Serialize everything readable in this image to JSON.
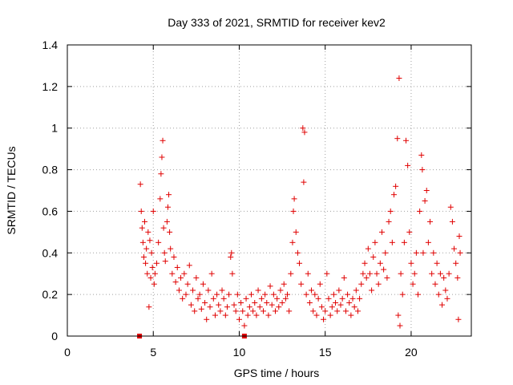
{
  "chart_data": {
    "type": "scatter",
    "title": "Day 333 of 2021, SRMTID for receiver kev2",
    "xlabel": "GPS time / hours",
    "ylabel": "SRMTID / TECUs",
    "xlim": [
      0,
      23.5
    ],
    "ylim": [
      0,
      1.4
    ],
    "xticks": [
      0,
      5,
      10,
      15,
      20
    ],
    "xtick_labels": [
      "0",
      "5",
      "10",
      "15",
      "20"
    ],
    "yticks": [
      0,
      0.2,
      0.4,
      0.6,
      0.8,
      1.0,
      1.2,
      1.4
    ],
    "ytick_labels": [
      "0",
      "0.2",
      "0.4",
      "0.6",
      "0.8",
      "1",
      "1.2",
      "1.4"
    ],
    "grid": true,
    "marker": "plus",
    "color": "#e00000",
    "series": [
      {
        "name": "kev2",
        "points": [
          [
            4.25,
            0.73
          ],
          [
            4.3,
            0.6
          ],
          [
            4.35,
            0.52
          ],
          [
            4.4,
            0.45
          ],
          [
            4.45,
            0.38
          ],
          [
            4.5,
            0.55
          ],
          [
            4.55,
            0.35
          ],
          [
            4.6,
            0.42
          ],
          [
            4.65,
            0.3
          ],
          [
            4.7,
            0.5
          ],
          [
            4.75,
            0.14
          ],
          [
            4.8,
            0.46
          ],
          [
            4.85,
            0.28
          ],
          [
            4.9,
            0.4
          ],
          [
            4.95,
            0.33
          ],
          [
            5.0,
            0.6
          ],
          [
            5.05,
            0.25
          ],
          [
            5.1,
            0.3
          ],
          [
            5.2,
            0.35
          ],
          [
            5.3,
            0.45
          ],
          [
            5.4,
            0.66
          ],
          [
            5.45,
            0.78
          ],
          [
            5.5,
            0.86
          ],
          [
            5.55,
            0.94
          ],
          [
            5.6,
            0.52
          ],
          [
            5.65,
            0.4
          ],
          [
            5.7,
            0.36
          ],
          [
            5.8,
            0.55
          ],
          [
            5.85,
            0.62
          ],
          [
            5.9,
            0.68
          ],
          [
            5.95,
            0.5
          ],
          [
            6.0,
            0.42
          ],
          [
            6.1,
            0.3
          ],
          [
            6.2,
            0.38
          ],
          [
            6.3,
            0.26
          ],
          [
            6.4,
            0.33
          ],
          [
            6.5,
            0.22
          ],
          [
            6.6,
            0.28
          ],
          [
            6.7,
            0.18
          ],
          [
            6.8,
            0.3
          ],
          [
            6.9,
            0.2
          ],
          [
            7.0,
            0.25
          ],
          [
            7.1,
            0.34
          ],
          [
            7.2,
            0.15
          ],
          [
            7.3,
            0.22
          ],
          [
            7.4,
            0.12
          ],
          [
            7.5,
            0.28
          ],
          [
            7.6,
            0.18
          ],
          [
            7.7,
            0.2
          ],
          [
            7.8,
            0.13
          ],
          [
            7.9,
            0.25
          ],
          [
            8.0,
            0.16
          ],
          [
            8.1,
            0.08
          ],
          [
            8.2,
            0.22
          ],
          [
            8.3,
            0.14
          ],
          [
            8.4,
            0.3
          ],
          [
            8.5,
            0.18
          ],
          [
            8.6,
            0.1
          ],
          [
            8.7,
            0.2
          ],
          [
            8.8,
            0.15
          ],
          [
            8.9,
            0.12
          ],
          [
            9.0,
            0.22
          ],
          [
            9.1,
            0.18
          ],
          [
            9.2,
            0.1
          ],
          [
            9.3,
            0.14
          ],
          [
            9.4,
            0.2
          ],
          [
            9.5,
            0.38
          ],
          [
            9.55,
            0.4
          ],
          [
            9.6,
            0.3
          ],
          [
            9.7,
            0.15
          ],
          [
            9.8,
            0.12
          ],
          [
            9.9,
            0.2
          ],
          [
            10.0,
            0.08
          ],
          [
            10.1,
            0.16
          ],
          [
            10.2,
            0.12
          ],
          [
            10.3,
            0.05
          ],
          [
            10.4,
            0.18
          ],
          [
            10.5,
            0.1
          ],
          [
            10.6,
            0.14
          ],
          [
            10.7,
            0.2
          ],
          [
            10.8,
            0.12
          ],
          [
            10.9,
            0.16
          ],
          [
            11.0,
            0.1
          ],
          [
            11.1,
            0.22
          ],
          [
            11.2,
            0.14
          ],
          [
            11.3,
            0.18
          ],
          [
            11.4,
            0.12
          ],
          [
            11.5,
            0.2
          ],
          [
            11.6,
            0.16
          ],
          [
            11.7,
            0.1
          ],
          [
            11.8,
            0.24
          ],
          [
            11.9,
            0.15
          ],
          [
            12.0,
            0.2
          ],
          [
            12.1,
            0.12
          ],
          [
            12.2,
            0.18
          ],
          [
            12.3,
            0.14
          ],
          [
            12.4,
            0.22
          ],
          [
            12.5,
            0.16
          ],
          [
            12.6,
            0.25
          ],
          [
            12.7,
            0.18
          ],
          [
            12.8,
            0.2
          ],
          [
            12.9,
            0.12
          ],
          [
            13.0,
            0.3
          ],
          [
            13.1,
            0.45
          ],
          [
            13.15,
            0.6
          ],
          [
            13.2,
            0.66
          ],
          [
            13.3,
            0.5
          ],
          [
            13.4,
            0.4
          ],
          [
            13.5,
            0.35
          ],
          [
            13.6,
            0.25
          ],
          [
            13.7,
            1.0
          ],
          [
            13.75,
            0.74
          ],
          [
            13.8,
            0.98
          ],
          [
            13.9,
            0.2
          ],
          [
            14.0,
            0.3
          ],
          [
            14.1,
            0.16
          ],
          [
            14.2,
            0.22
          ],
          [
            14.3,
            0.12
          ],
          [
            14.4,
            0.2
          ],
          [
            14.5,
            0.1
          ],
          [
            14.6,
            0.18
          ],
          [
            14.7,
            0.25
          ],
          [
            14.8,
            0.14
          ],
          [
            14.9,
            0.08
          ],
          [
            15.0,
            0.12
          ],
          [
            15.1,
            0.3
          ],
          [
            15.2,
            0.18
          ],
          [
            15.3,
            0.1
          ],
          [
            15.4,
            0.14
          ],
          [
            15.5,
            0.2
          ],
          [
            15.6,
            0.16
          ],
          [
            15.7,
            0.12
          ],
          [
            15.8,
            0.22
          ],
          [
            15.9,
            0.15
          ],
          [
            16.0,
            0.18
          ],
          [
            16.1,
            0.28
          ],
          [
            16.2,
            0.12
          ],
          [
            16.3,
            0.2
          ],
          [
            16.4,
            0.16
          ],
          [
            16.5,
            0.1
          ],
          [
            16.6,
            0.18
          ],
          [
            16.7,
            0.14
          ],
          [
            16.8,
            0.22
          ],
          [
            16.9,
            0.12
          ],
          [
            17.0,
            0.18
          ],
          [
            17.1,
            0.25
          ],
          [
            17.2,
            0.3
          ],
          [
            17.3,
            0.35
          ],
          [
            17.4,
            0.28
          ],
          [
            17.5,
            0.42
          ],
          [
            17.6,
            0.3
          ],
          [
            17.7,
            0.22
          ],
          [
            17.8,
            0.38
          ],
          [
            17.9,
            0.45
          ],
          [
            18.0,
            0.3
          ],
          [
            18.1,
            0.25
          ],
          [
            18.2,
            0.35
          ],
          [
            18.3,
            0.5
          ],
          [
            18.4,
            0.32
          ],
          [
            18.5,
            0.4
          ],
          [
            18.6,
            0.28
          ],
          [
            18.7,
            0.55
          ],
          [
            18.8,
            0.6
          ],
          [
            18.9,
            0.45
          ],
          [
            19.0,
            0.68
          ],
          [
            19.1,
            0.72
          ],
          [
            19.2,
            0.95
          ],
          [
            19.25,
            0.1
          ],
          [
            19.3,
            1.24
          ],
          [
            19.35,
            0.05
          ],
          [
            19.4,
            0.3
          ],
          [
            19.5,
            0.2
          ],
          [
            19.6,
            0.45
          ],
          [
            19.7,
            0.94
          ],
          [
            19.8,
            0.82
          ],
          [
            19.9,
            0.5
          ],
          [
            20.0,
            0.35
          ],
          [
            20.1,
            0.25
          ],
          [
            20.2,
            0.3
          ],
          [
            20.3,
            0.4
          ],
          [
            20.4,
            0.2
          ],
          [
            20.5,
            0.6
          ],
          [
            20.6,
            0.87
          ],
          [
            20.65,
            0.8
          ],
          [
            20.7,
            0.4
          ],
          [
            20.8,
            0.65
          ],
          [
            20.9,
            0.7
          ],
          [
            21.0,
            0.45
          ],
          [
            21.1,
            0.55
          ],
          [
            21.2,
            0.3
          ],
          [
            21.3,
            0.4
          ],
          [
            21.4,
            0.25
          ],
          [
            21.5,
            0.35
          ],
          [
            21.6,
            0.2
          ],
          [
            21.7,
            0.3
          ],
          [
            21.8,
            0.15
          ],
          [
            21.9,
            0.28
          ],
          [
            22.0,
            0.22
          ],
          [
            22.1,
            0.18
          ],
          [
            22.2,
            0.3
          ],
          [
            22.3,
            0.62
          ],
          [
            22.4,
            0.55
          ],
          [
            22.5,
            0.42
          ],
          [
            22.6,
            0.35
          ],
          [
            22.7,
            0.28
          ],
          [
            22.75,
            0.08
          ],
          [
            22.8,
            0.48
          ],
          [
            22.85,
            0.4
          ]
        ]
      }
    ],
    "markers_on_axis": [
      [
        4.2,
        0.0
      ],
      [
        10.3,
        0.0
      ]
    ]
  }
}
